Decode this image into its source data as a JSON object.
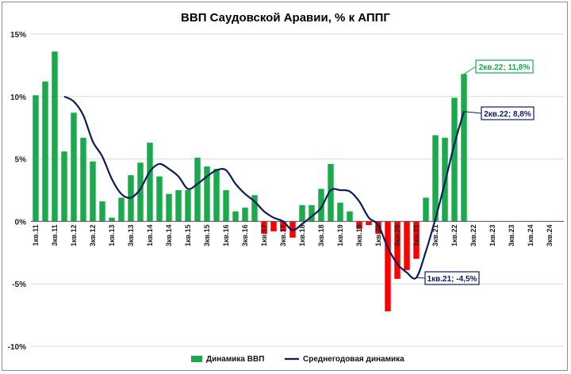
{
  "chart_data": {
    "type": "bar",
    "title": "ВВП Саудовской Аравии, % к АППГ",
    "ylim": [
      -10,
      15
    ],
    "y_ticks": [
      "-10%",
      "-5%",
      "0%",
      "5%",
      "10%",
      "15%"
    ],
    "y_tick_values": [
      -10,
      -5,
      0,
      5,
      10,
      15
    ],
    "categories": [
      "1кв.11",
      "2кв.11",
      "3кв.11",
      "4кв.11",
      "1кв.12",
      "2кв.12",
      "3кв.12",
      "4кв.12",
      "1кв.13",
      "2кв.13",
      "3кв.13",
      "4кв.13",
      "1кв.14",
      "2кв.14",
      "3кв.14",
      "4кв.14",
      "1кв.15",
      "2кв.15",
      "3кв.15",
      "4кв.15",
      "1кв.16",
      "2кв.16",
      "3кв.16",
      "4кв.16",
      "1кв.17",
      "2кв.17",
      "3кв.17",
      "4кв.17",
      "1кв.18",
      "2кв.18",
      "3кв.18",
      "4кв.18",
      "1кв.19",
      "2кв.19",
      "3кв.19",
      "4кв.19",
      "1кв.20",
      "2кв.20",
      "3кв.20",
      "4кв.20",
      "1кв.21",
      "2кв.21",
      "3кв.21",
      "4кв.21",
      "1кв.22",
      "2кв.22",
      "3кв.22",
      "4кв.22",
      "1кв.23",
      "2кв.23",
      "3кв.23",
      "4кв.23",
      "1кв.24",
      "2кв.24",
      "3кв.24",
      "4кв.24"
    ],
    "x_tick_labels": [
      "1кв.11",
      "3кв.11",
      "1кв.12",
      "3кв.12",
      "1кв.13",
      "3кв.13",
      "1кв.14",
      "3кв.14",
      "1кв.15",
      "3кв.15",
      "1кв.16",
      "3кв.16",
      "1кв.17",
      "3кв.17",
      "1кв.18",
      "3кв.18",
      "1кв.19",
      "3кв.19",
      "1кв.20",
      "3кв.20",
      "1кв.21",
      "3кв.21",
      "1кв.22",
      "3кв.22",
      "1кв.23",
      "3кв.23",
      "1кв.24",
      "3кв.24"
    ],
    "series": [
      {
        "name": "Динамика ВВП",
        "kind": "bar",
        "color_positive": "#1aaa4b",
        "color_negative": "#ff0000",
        "values": [
          10.1,
          11.2,
          13.6,
          5.6,
          8.7,
          6.7,
          4.8,
          1.6,
          0.3,
          1.9,
          3.7,
          4.7,
          6.3,
          3.6,
          2.2,
          2.5,
          2.5,
          5.1,
          4.4,
          4.2,
          2.5,
          0.8,
          1.1,
          2.1,
          -1.0,
          -0.8,
          -0.8,
          -1.3,
          1.3,
          1.3,
          2.6,
          4.6,
          1.5,
          0.8,
          -0.6,
          -0.3,
          -1.0,
          -7.2,
          -4.6,
          -3.9,
          -3.0,
          1.9,
          6.9,
          6.7,
          9.9,
          11.8,
          null,
          null,
          null,
          null,
          null,
          null,
          null,
          null,
          null,
          null
        ]
      },
      {
        "name": "Среднегодовая динамика",
        "kind": "line",
        "color": "#0d1a5c",
        "values": [
          null,
          null,
          null,
          10.0,
          9.6,
          8.5,
          6.4,
          5.2,
          3.4,
          2.2,
          1.9,
          2.6,
          4.0,
          4.6,
          4.2,
          3.6,
          2.6,
          3.0,
          3.6,
          4.1,
          4.1,
          3.0,
          2.2,
          1.6,
          0.8,
          0.3,
          0.0,
          -0.7,
          -0.2,
          0.4,
          1.1,
          2.5,
          2.5,
          2.4,
          1.6,
          0.3,
          -0.3,
          -2.1,
          -3.4,
          -4.1,
          -4.5,
          -2.4,
          0.2,
          3.1,
          6.2,
          8.8,
          null,
          null,
          null,
          null,
          null,
          null,
          null,
          null,
          null,
          null
        ]
      }
    ],
    "annotations": [
      {
        "text": "2кв.22; 11,8%",
        "series": "Динамика ВВП",
        "category": "2кв.22",
        "color": "#1aaa4b"
      },
      {
        "text": "2кв.22; 8,8%",
        "series": "Среднегодовая динамика",
        "category": "2кв.22",
        "color": "#0d1a5c"
      },
      {
        "text": "1кв.21; -4,5%",
        "series": "Среднегодовая динамика",
        "category": "1кв.21",
        "color": "#0d1a5c"
      }
    ],
    "legend": {
      "placement": "bottom",
      "items": [
        {
          "label": "Динамика ВВП",
          "color": "#1aaa4b",
          "marker": "box"
        },
        {
          "label": "Среднегодовая динамика",
          "color": "#0d1a5c",
          "marker": "line"
        }
      ]
    },
    "grid": {
      "horizontal": true,
      "vertical": false
    }
  }
}
